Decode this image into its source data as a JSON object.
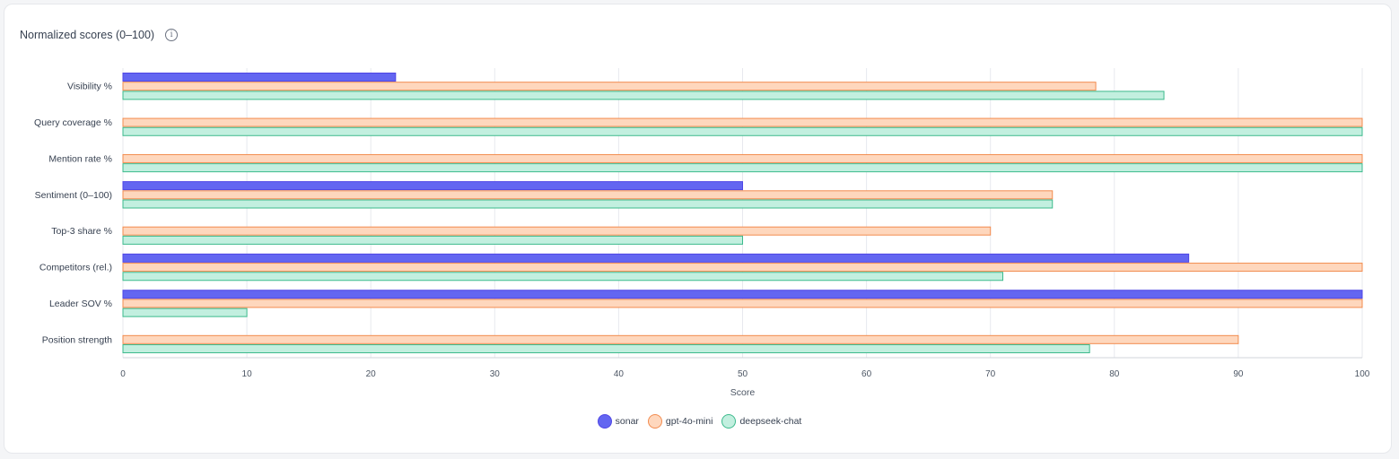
{
  "header": {
    "title": "Normalized scores (0–100)",
    "info_icon": "info-icon"
  },
  "chart_data": {
    "type": "bar",
    "orientation": "horizontal",
    "title": "Normalized scores (0–100)",
    "xlabel": "Score",
    "ylabel": "",
    "xlim": [
      0,
      100
    ],
    "xticks": [
      0,
      10,
      20,
      30,
      40,
      50,
      60,
      70,
      80,
      90,
      100
    ],
    "grid": true,
    "legend_position": "bottom",
    "categories": [
      "Visibility %",
      "Query coverage %",
      "Mention rate %",
      "Sentiment (0–100)",
      "Top-3 share %",
      "Competitors (rel.)",
      "Leader SOV %",
      "Position strength"
    ],
    "series": [
      {
        "name": "sonar",
        "fill": "#6366f1",
        "stroke": "#4f46e5",
        "values": [
          22,
          0,
          0,
          50,
          0,
          86,
          100,
          0
        ]
      },
      {
        "name": "gpt-4o-mini",
        "fill": "#fed7bd",
        "stroke": "#f28b4e",
        "values": [
          78.5,
          100,
          100,
          75,
          70,
          100,
          100,
          90
        ]
      },
      {
        "name": "deepseek-chat",
        "fill": "#c2efdf",
        "stroke": "#3cba8c",
        "values": [
          84,
          100,
          100,
          75,
          50,
          71,
          10,
          78
        ]
      }
    ]
  }
}
